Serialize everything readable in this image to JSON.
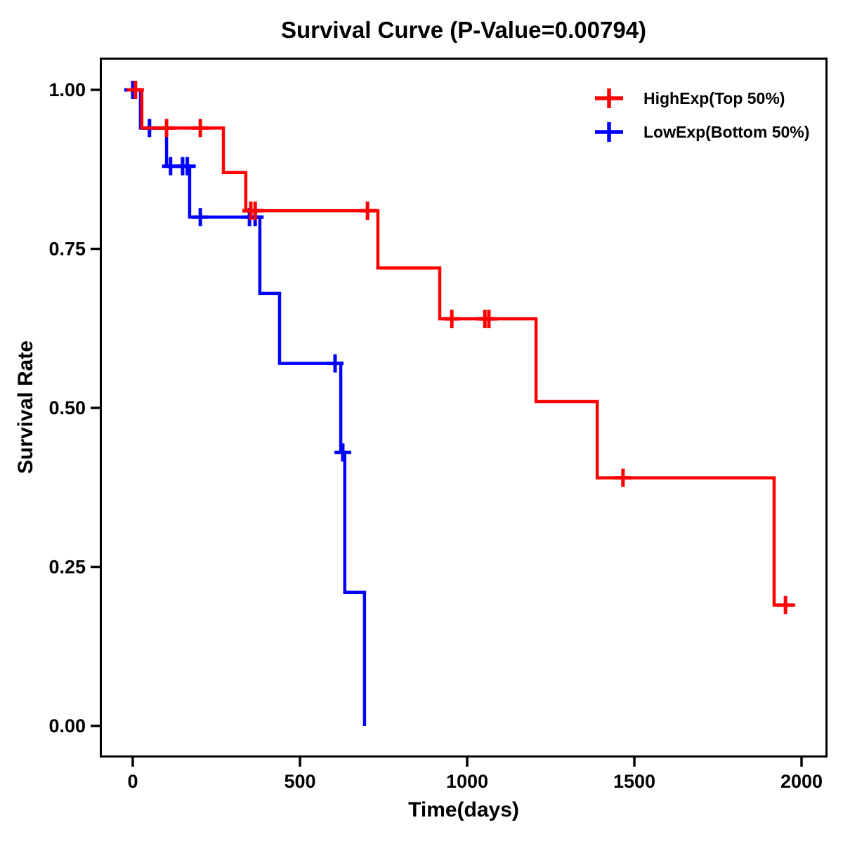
{
  "chart_data": {
    "type": "line",
    "subtype": "kaplan-meier-step-curve",
    "title": "Survival Curve (P-Value=0.00794)",
    "p_value": "0.00794",
    "xlabel": "Time(days)",
    "ylabel": "Survival Rate",
    "x_ticks": [
      0,
      500,
      1000,
      1500,
      2000
    ],
    "y_ticks": [
      1.0,
      0.75,
      0.5,
      0.25,
      0.0
    ],
    "y_tick_labels": [
      "1.00",
      "0.75",
      "0.50",
      "0.25",
      "0.00"
    ],
    "xlim": [
      -97,
      2076
    ],
    "ylim": [
      -0.105,
      1.05
    ],
    "grid": false,
    "legend_position": "top-right",
    "colors": {
      "high": "#FF0000",
      "low": "#0000FF",
      "axis": "#000000",
      "background": "#FFFFFF"
    },
    "series": [
      {
        "name": "LowExp(Bottom 50%)",
        "color": "#0000FF",
        "steps": [
          {
            "t": 0,
            "s": 1.0
          },
          {
            "t": 23,
            "s": 0.94
          },
          {
            "t": 101,
            "s": 0.88
          },
          {
            "t": 170,
            "s": 0.8
          },
          {
            "t": 380,
            "s": 0.68
          },
          {
            "t": 439,
            "s": 0.57
          },
          {
            "t": 622,
            "s": 0.43
          },
          {
            "t": 634,
            "s": 0.21
          },
          {
            "t": 693,
            "s": 0.0
          }
        ],
        "end_time": 693,
        "censored": [
          {
            "t": 0,
            "s": 1.0
          },
          {
            "t": 50,
            "s": 0.94
          },
          {
            "t": 113,
            "s": 0.88
          },
          {
            "t": 149,
            "s": 0.88
          },
          {
            "t": 163,
            "s": 0.88
          },
          {
            "t": 202,
            "s": 0.8
          },
          {
            "t": 349,
            "s": 0.8
          },
          {
            "t": 366,
            "s": 0.8
          },
          {
            "t": 605,
            "s": 0.57
          },
          {
            "t": 628,
            "s": 0.43
          }
        ]
      },
      {
        "name": "HighExp(Top 50%)",
        "color": "#FF0000",
        "steps": [
          {
            "t": 0,
            "s": 1.0
          },
          {
            "t": 27,
            "s": 0.94
          },
          {
            "t": 271,
            "s": 0.87
          },
          {
            "t": 338,
            "s": 0.81
          },
          {
            "t": 733,
            "s": 0.72
          },
          {
            "t": 918,
            "s": 0.64
          },
          {
            "t": 1206,
            "s": 0.51
          },
          {
            "t": 1389,
            "s": 0.39
          },
          {
            "t": 1918,
            "s": 0.19
          }
        ],
        "end_time": 1981,
        "censored": [
          {
            "t": 8,
            "s": 1.0
          },
          {
            "t": 101,
            "s": 0.94
          },
          {
            "t": 202,
            "s": 0.94
          },
          {
            "t": 353,
            "s": 0.81
          },
          {
            "t": 366,
            "s": 0.81
          },
          {
            "t": 702,
            "s": 0.81
          },
          {
            "t": 954,
            "s": 0.64
          },
          {
            "t": 1053,
            "s": 0.64
          },
          {
            "t": 1065,
            "s": 0.64
          },
          {
            "t": 1466,
            "s": 0.39
          },
          {
            "t": 1952,
            "s": 0.19
          }
        ]
      }
    ],
    "legend": [
      {
        "label": "HighExp(Top 50%)",
        "color": "#FF0000"
      },
      {
        "label": "LowExp(Bottom 50%)",
        "color": "#0000FF"
      }
    ]
  }
}
